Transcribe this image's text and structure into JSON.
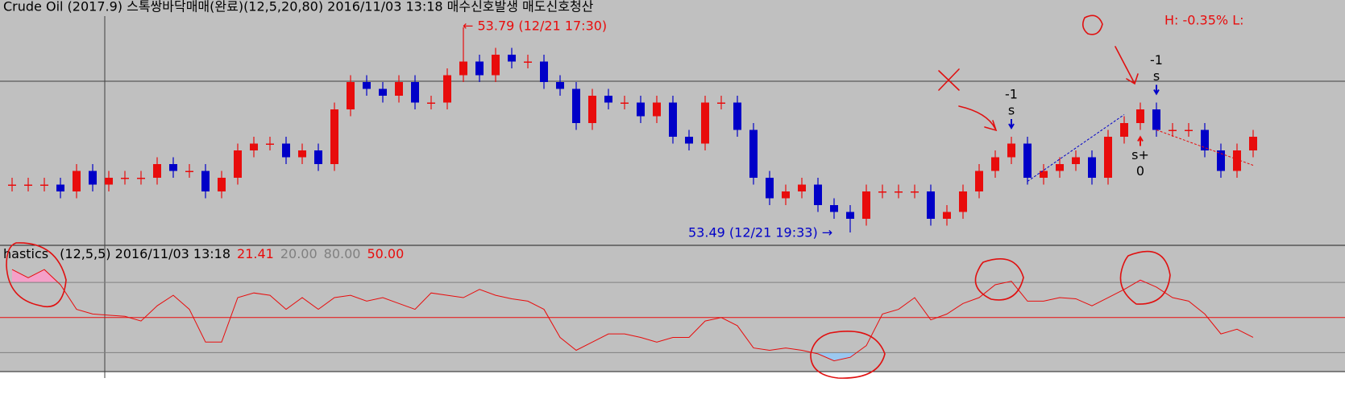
{
  "chart_data": [
    {
      "type": "candlestick",
      "title": "Crude Oil (2017.9) 스톡쌍바닥매매(완료)(12,5,20,80)  2016/11/03 13:18 매수신호발생 매도신호청산",
      "status": "H: -0.35%  L:",
      "high_label": "← 53.79 (12/21 17:30)",
      "low_label": "53.49 (12/21 19:33) →",
      "up_color": "#e80c0c",
      "down_color": "#0000c8",
      "ylim": [
        53.47,
        53.83
      ],
      "open": [
        53.56,
        53.56,
        53.56,
        53.56,
        53.55,
        53.58,
        53.56,
        53.57,
        53.57,
        53.57,
        53.59,
        53.58,
        53.58,
        53.55,
        53.57,
        53.61,
        53.62,
        53.62,
        53.6,
        53.61,
        53.59,
        53.67,
        53.71,
        53.7,
        53.69,
        53.71,
        53.68,
        53.68,
        53.72,
        53.74,
        53.72,
        53.75,
        53.74,
        53.74,
        53.71,
        53.7,
        53.65,
        53.69,
        53.68,
        53.68,
        53.66,
        53.68,
        53.63,
        53.62,
        53.68,
        53.68,
        53.64,
        53.57,
        53.54,
        53.55,
        53.56,
        53.53,
        53.52,
        53.51,
        53.55,
        53.55,
        53.55,
        53.55,
        53.51,
        53.52,
        53.55,
        53.58,
        53.6,
        53.62,
        53.57,
        53.58,
        53.59,
        53.6,
        53.57,
        53.63,
        53.65,
        53.67,
        53.64,
        53.64,
        53.64,
        53.61,
        53.58,
        53.61
      ],
      "high": [
        53.57,
        53.57,
        53.57,
        53.57,
        53.59,
        53.59,
        53.58,
        53.58,
        53.58,
        53.6,
        53.6,
        53.59,
        53.59,
        53.58,
        53.62,
        53.63,
        53.63,
        53.63,
        53.62,
        53.62,
        53.68,
        53.72,
        53.72,
        53.71,
        53.72,
        53.72,
        53.69,
        53.73,
        53.79,
        53.75,
        53.76,
        53.76,
        53.75,
        53.75,
        53.72,
        53.71,
        53.7,
        53.7,
        53.69,
        53.69,
        53.69,
        53.69,
        53.64,
        53.69,
        53.69,
        53.69,
        53.65,
        53.58,
        53.56,
        53.57,
        53.57,
        53.54,
        53.53,
        53.56,
        53.56,
        53.56,
        53.56,
        53.56,
        53.53,
        53.56,
        53.59,
        53.61,
        53.63,
        53.63,
        53.59,
        53.6,
        53.61,
        53.61,
        53.64,
        53.66,
        53.68,
        53.68,
        53.65,
        53.65,
        53.65,
        53.62,
        53.62,
        53.64
      ],
      "low": [
        53.55,
        53.55,
        53.55,
        53.54,
        53.54,
        53.55,
        53.55,
        53.56,
        53.56,
        53.56,
        53.57,
        53.57,
        53.54,
        53.54,
        53.56,
        53.6,
        53.61,
        53.59,
        53.59,
        53.58,
        53.58,
        53.66,
        53.69,
        53.68,
        53.68,
        53.67,
        53.67,
        53.67,
        53.71,
        53.71,
        53.71,
        53.73,
        53.73,
        53.7,
        53.69,
        53.64,
        53.64,
        53.67,
        53.67,
        53.65,
        53.65,
        53.62,
        53.61,
        53.61,
        53.67,
        53.63,
        53.56,
        53.53,
        53.53,
        53.54,
        53.52,
        53.51,
        53.49,
        53.5,
        53.54,
        53.54,
        53.54,
        53.5,
        53.5,
        53.51,
        53.54,
        53.57,
        53.59,
        53.56,
        53.56,
        53.57,
        53.58,
        53.56,
        53.56,
        53.62,
        53.64,
        53.63,
        53.63,
        53.63,
        53.6,
        53.57,
        53.57,
        53.6
      ],
      "close": [
        53.56,
        53.56,
        53.56,
        53.55,
        53.58,
        53.56,
        53.57,
        53.57,
        53.57,
        53.59,
        53.58,
        53.58,
        53.55,
        53.57,
        53.61,
        53.62,
        53.62,
        53.6,
        53.61,
        53.59,
        53.67,
        53.71,
        53.7,
        53.69,
        53.71,
        53.68,
        53.68,
        53.72,
        53.74,
        53.72,
        53.75,
        53.74,
        53.74,
        53.71,
        53.7,
        53.65,
        53.69,
        53.68,
        53.68,
        53.66,
        53.68,
        53.63,
        53.62,
        53.68,
        53.68,
        53.64,
        53.57,
        53.54,
        53.55,
        53.56,
        53.53,
        53.52,
        53.51,
        53.55,
        53.55,
        53.55,
        53.55,
        53.51,
        53.52,
        53.55,
        53.58,
        53.6,
        53.62,
        53.57,
        53.58,
        53.59,
        53.6,
        53.57,
        53.63,
        53.65,
        53.67,
        53.64,
        53.64,
        53.64,
        53.61,
        53.58,
        53.61,
        53.63
      ],
      "signals": [
        {
          "top": "-1",
          "bottom": "s"
        },
        {
          "top": "-1",
          "bottom": "s"
        },
        {
          "top": "s+",
          "bottom": "0"
        }
      ]
    },
    {
      "type": "line",
      "name": "hastics",
      "params": "(12,5,5) 2016/11/03 13:18",
      "current": 21.41,
      "levels": [
        {
          "value": 20,
          "label": "20.00"
        },
        {
          "value": 80,
          "label": "80.00"
        },
        {
          "value": 50,
          "label": "50.00"
        }
      ],
      "color": "#e80c0c",
      "ylim": [
        0,
        100
      ],
      "values": [
        91,
        84,
        91,
        78,
        57,
        53,
        52,
        51,
        47,
        60,
        69,
        57,
        29,
        29,
        67,
        71,
        69,
        57,
        67,
        57,
        67,
        69,
        64,
        67,
        62,
        57,
        71,
        69,
        67,
        74,
        69,
        66,
        64,
        57,
        33,
        22,
        29,
        36,
        36,
        33,
        29,
        33,
        33,
        47,
        50,
        43,
        24,
        22,
        24,
        22,
        19,
        13,
        16,
        26,
        53,
        57,
        67,
        48,
        53,
        62,
        67,
        78,
        81,
        64,
        64,
        67,
        66,
        60,
        67,
        74,
        82,
        76,
        67,
        64,
        53,
        36,
        40,
        33
      ]
    }
  ]
}
